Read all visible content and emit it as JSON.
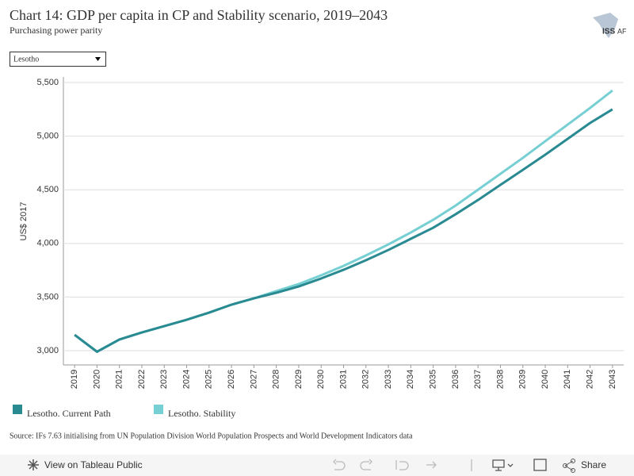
{
  "chart_data": {
    "type": "line",
    "title": "Chart 14: GDP per capita in CP and Stability scenario, 2019–2043",
    "subtitle": "Purchasing power parity",
    "y_label": "US$ 2017",
    "categories": [
      "2019",
      "2020",
      "2021",
      "2022",
      "2023",
      "2024",
      "2025",
      "2026",
      "2027",
      "2028",
      "2029",
      "2030",
      "2031",
      "2032",
      "2033",
      "2034",
      "2035",
      "2036",
      "2037",
      "2038",
      "2039",
      "2040",
      "2041",
      "2042",
      "2043"
    ],
    "series": [
      {
        "name": "Lesotho. Stability",
        "color": "#76cfd3",
        "values": [
          3148,
          2990,
          3104,
          3170,
          3229,
          3288,
          3355,
          3429,
          3488,
          3555,
          3621,
          3703,
          3791,
          3888,
          3991,
          4102,
          4220,
          4353,
          4501,
          4649,
          4797,
          4953,
          5108,
          5263,
          5426
        ]
      },
      {
        "name": "Lesotho. Current Path",
        "color": "#2a8a92",
        "values": [
          3148,
          2990,
          3104,
          3170,
          3229,
          3288,
          3355,
          3429,
          3488,
          3540,
          3599,
          3673,
          3754,
          3843,
          3939,
          4043,
          4146,
          4272,
          4405,
          4546,
          4686,
          4827,
          4975,
          5123,
          5250
        ]
      }
    ],
    "ylim": [
      2867,
      5552
    ],
    "yticks": [
      {
        "value": 3000,
        "label": "3,000"
      },
      {
        "value": 3500,
        "label": "3,500"
      },
      {
        "value": 4000,
        "label": "4,000"
      },
      {
        "value": 4500,
        "label": "4,500"
      },
      {
        "value": 5000,
        "label": "5,000"
      },
      {
        "value": 5500,
        "label": "5,500"
      }
    ],
    "grid": true
  },
  "dropdown": "Lesotho",
  "source": "Source: IFs 7.63 initialising from UN Population Division World Population Prospects and World Development Indicators data",
  "logo": {
    "main": "ISS",
    "sub": "AF"
  },
  "toolbar": {
    "view": "View on Tableau Public",
    "share": "Share"
  }
}
